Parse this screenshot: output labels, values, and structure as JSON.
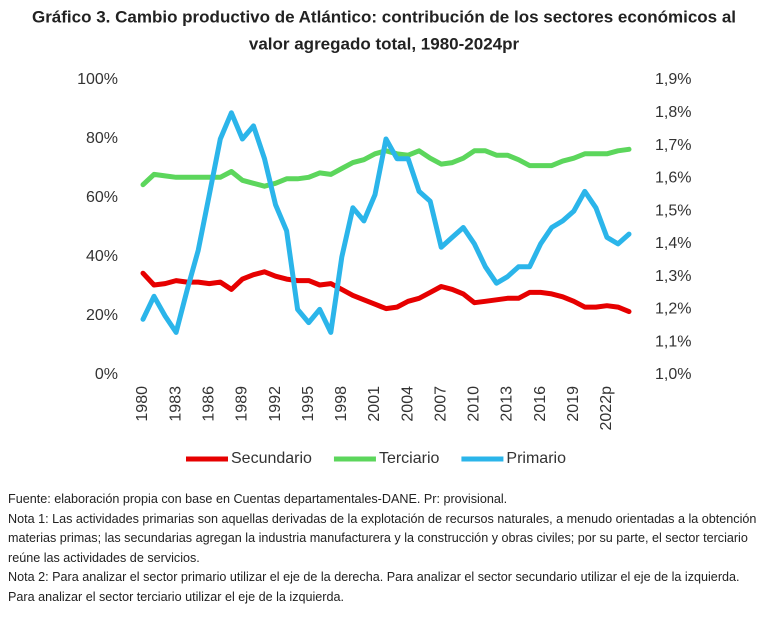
{
  "chart_data": {
    "type": "line",
    "title": [
      "Gráfico 3. Cambio productivo de Atlántico: contribución de los sectores económicos al",
      "valor agregado total, 1980-2024pr"
    ],
    "categories": [
      "1980",
      null,
      null,
      "1983",
      null,
      null,
      "1986",
      null,
      null,
      "1989",
      null,
      null,
      "1992",
      null,
      null,
      "1995",
      null,
      null,
      "1998",
      null,
      null,
      "2001",
      null,
      null,
      "2004",
      null,
      null,
      "2007",
      null,
      null,
      "2010",
      null,
      null,
      "2013",
      null,
      null,
      "2016",
      null,
      null,
      "2019",
      null,
      null,
      "2022p",
      null,
      null
    ],
    "series": [
      {
        "name": "Secundario",
        "color": "#e60000",
        "axis": "y",
        "values": [
          34.5,
          30.5,
          31,
          32,
          31.5,
          31.5,
          31,
          31.5,
          29,
          32.5,
          34,
          35,
          33.5,
          32.5,
          32,
          32,
          30.5,
          31,
          29,
          27,
          25.5,
          24,
          22.5,
          23,
          25,
          26,
          28,
          30,
          29,
          27.5,
          24.5,
          25,
          25.5,
          26,
          26,
          28,
          28,
          27.5,
          26.5,
          25,
          23,
          23,
          23.5,
          23,
          21.5
        ]
      },
      {
        "name": "Terciario",
        "color": "#5cd65c",
        "axis": "y",
        "values": [
          64.5,
          68,
          67.5,
          67,
          67,
          67,
          67,
          67,
          69,
          66,
          65,
          64,
          65,
          66.5,
          66.5,
          67,
          68.5,
          68,
          70,
          72,
          73,
          75,
          76,
          75,
          74.5,
          76,
          73.5,
          71.5,
          72,
          73.5,
          76,
          76,
          74.5,
          74.5,
          73,
          71,
          71,
          71,
          72.5,
          73.5,
          75,
          75,
          75,
          76,
          76.5
        ]
      },
      {
        "name": "Primario",
        "color": "#2bb5ea",
        "axis": "y2",
        "values": [
          1.17,
          1.24,
          1.18,
          1.13,
          1.26,
          1.38,
          1.55,
          1.72,
          1.8,
          1.72,
          1.76,
          1.66,
          1.52,
          1.44,
          1.2,
          1.16,
          1.2,
          1.13,
          1.36,
          1.51,
          1.47,
          1.55,
          1.72,
          1.66,
          1.66,
          1.56,
          1.53,
          1.39,
          1.42,
          1.45,
          1.4,
          1.33,
          1.28,
          1.3,
          1.33,
          1.33,
          1.4,
          1.45,
          1.47,
          1.5,
          1.56,
          1.51,
          1.42,
          1.4,
          1.43
        ]
      }
    ],
    "ylim": [
      0,
      100
    ],
    "yticks": [
      {
        "value": 0,
        "label": "0%"
      },
      {
        "value": 20,
        "label": "20%"
      },
      {
        "value": 40,
        "label": "40%"
      },
      {
        "value": 60,
        "label": "60%"
      },
      {
        "value": 80,
        "label": "80%"
      },
      {
        "value": 100,
        "label": "100%"
      }
    ],
    "y2lim": [
      1.0,
      1.9
    ],
    "y2ticks": [
      {
        "value": 1.0,
        "label": "1,0%"
      },
      {
        "value": 1.1,
        "label": "1,1%"
      },
      {
        "value": 1.2,
        "label": "1,2%"
      },
      {
        "value": 1.3,
        "label": "1,3%"
      },
      {
        "value": 1.4,
        "label": "1,4%"
      },
      {
        "value": 1.5,
        "label": "1,5%"
      },
      {
        "value": 1.6,
        "label": "1,6%"
      },
      {
        "value": 1.7,
        "label": "1,7%"
      },
      {
        "value": 1.8,
        "label": "1,8%"
      },
      {
        "value": 1.9,
        "label": "1,9%"
      }
    ],
    "grid": false,
    "legend": "bottom"
  },
  "notes": [
    "Fuente: elaboración propia con base en Cuentas departamentales-DANE. Pr: provisional.",
    "Nota 1: Las actividades primarias son aquellas derivadas de la explotación de recursos naturales, a menudo orientadas a la obtención materias primas; las secundarias agregan la industria manufacturera y la construcción y obras civiles; por su parte, el sector terciario reúne las actividades de servicios.",
    "Nota 2: Para analizar el sector primario utilizar el eje de la derecha. Para analizar el sector secundario utilizar el eje de la izquierda. Para analizar el sector terciario utilizar el eje de la izquierda."
  ]
}
